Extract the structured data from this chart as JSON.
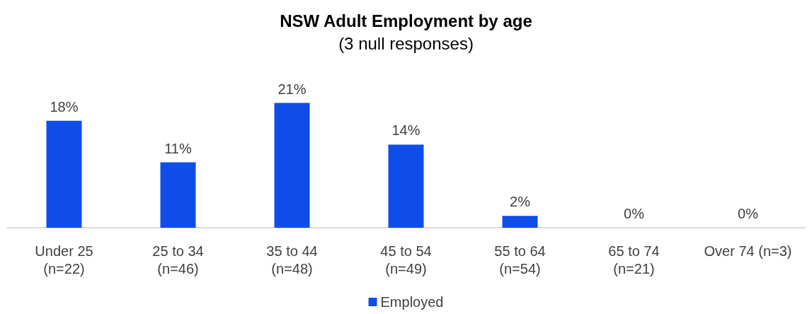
{
  "chart_data": {
    "type": "bar",
    "title": "NSW Adult Employment by age",
    "subtitle": "(3 null responses)",
    "categories": [
      "Under 25\n(n=22)",
      "25 to 34\n(n=46)",
      "35 to 44\n(n=48)",
      "45 to 54\n(n=49)",
      "55 to 64\n(n=54)",
      "65 to 74\n(n=21)",
      "Over 74 (n=3)"
    ],
    "series": [
      {
        "name": "Employed",
        "color": "#0f4de8",
        "values": [
          18,
          11,
          21,
          14,
          2,
          0,
          0
        ],
        "value_labels": [
          "18%",
          "11%",
          "21%",
          "14%",
          "2%",
          "0%",
          "0%"
        ]
      }
    ],
    "legend": "bottom"
  }
}
